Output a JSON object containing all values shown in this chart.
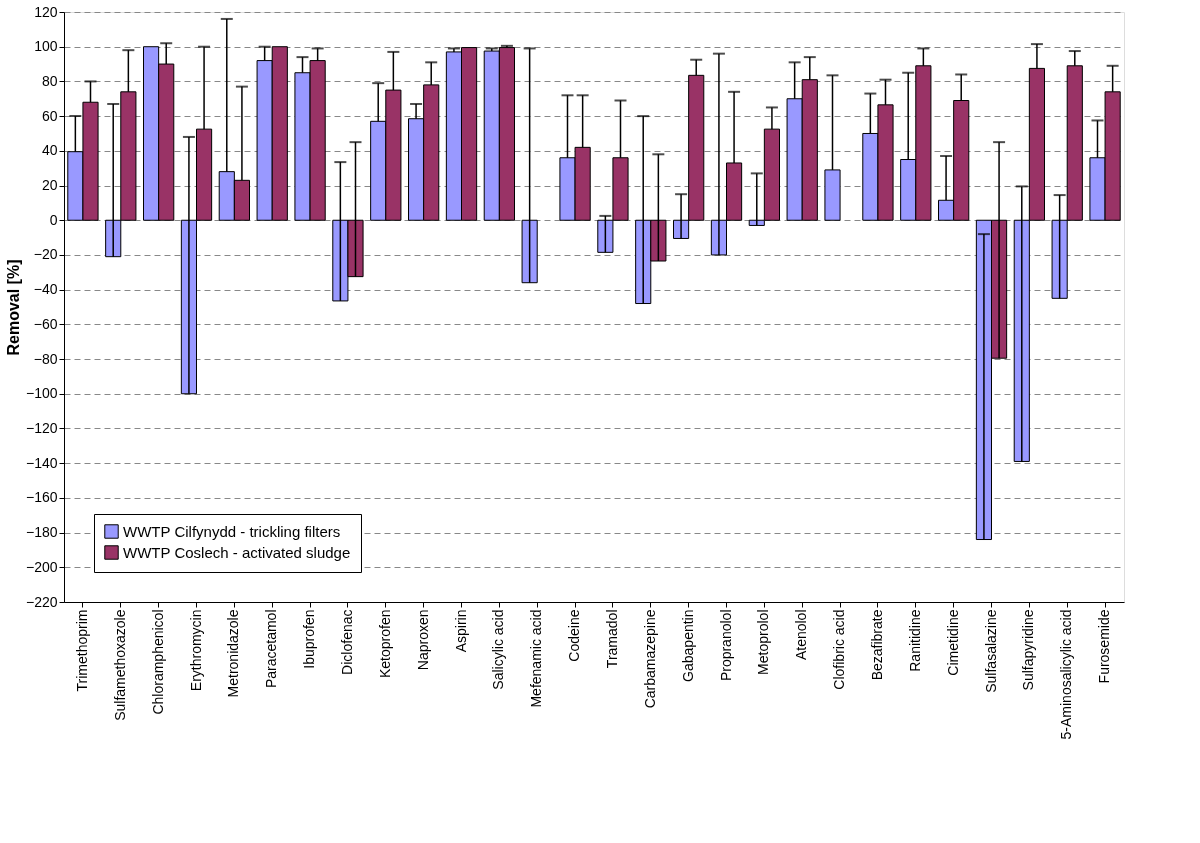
{
  "chart_data": {
    "type": "bar",
    "ylabel": "Removal [%]",
    "categories": [
      "Trimethoprim",
      "Sulfamethoxazole",
      "Chloramphenicol",
      "Erythromycin",
      "Metronidazole",
      "Paracetamol",
      "Ibuprofen",
      "Diclofenac",
      "Ketoprofen",
      "Naproxen",
      "Aspirin",
      "Salicylic acid",
      "Mefenamic acid",
      "Codeine",
      "Tramadol",
      "Carbamazepine",
      "Gabapentin",
      "Propranolol",
      "Metoprolol",
      "Atenolol",
      "Clofibric acid",
      "Bezafibrate",
      "Ranitidine",
      "Cimetidine",
      "Sulfasalazine",
      "Sulfapyridine",
      "5-Aminosalicylic acid",
      "Furosemide"
    ],
    "series": [
      {
        "name": "WWTP Cilfynydd - trickling filters",
        "color": "#9999ff",
        "values": [
          39.5,
          -21,
          100,
          -100,
          28,
          92,
          85,
          -46.5,
          57,
          58.5,
          97,
          97.5,
          -36,
          36,
          -18.5,
          -48,
          -10.5,
          -20,
          -3,
          70,
          29,
          50,
          35,
          11.5,
          -184,
          -139,
          -45,
          36
        ],
        "errors": [
          [
            39.5,
            60
          ],
          [
            -21,
            67
          ],
          null,
          [
            -100,
            48
          ],
          [
            28,
            116
          ],
          [
            92,
            100
          ],
          [
            85,
            94
          ],
          [
            -46.5,
            33.5
          ],
          [
            57,
            79
          ],
          [
            58.5,
            67
          ],
          [
            97,
            99
          ],
          [
            97.5,
            99
          ],
          [
            -36,
            99
          ],
          [
            36,
            72
          ],
          [
            -18.5,
            2.5
          ],
          [
            -48,
            60
          ],
          [
            -10.5,
            15
          ],
          [
            -20,
            96
          ],
          [
            -3,
            27
          ],
          [
            70,
            91
          ],
          [
            29,
            83.5
          ],
          [
            50,
            73
          ],
          [
            35,
            85
          ],
          [
            11.5,
            37
          ],
          [
            -184,
            -8
          ],
          [
            -139,
            19.5
          ],
          [
            -45,
            14.5
          ],
          [
            36,
            57.5
          ]
        ]
      },
      {
        "name": "WWTP Coslech - activated sludge",
        "color": "#993366",
        "values": [
          68,
          74,
          90,
          52.5,
          23,
          100,
          92,
          -32.5,
          75,
          78,
          99.5,
          99.5,
          null,
          42,
          36,
          -23.5,
          83.5,
          33,
          52.5,
          81,
          null,
          66.5,
          89,
          69,
          -79.5,
          87.5,
          89,
          74
        ],
        "errors": [
          [
            68,
            80
          ],
          [
            74,
            98
          ],
          [
            90,
            102
          ],
          [
            52.5,
            100
          ],
          [
            23,
            77
          ],
          null,
          [
            92,
            99
          ],
          [
            -32.5,
            45
          ],
          [
            75,
            97
          ],
          [
            78,
            91
          ],
          null,
          [
            99.5,
            100.5
          ],
          null,
          [
            42,
            72
          ],
          [
            36,
            69
          ],
          [
            -23.5,
            38
          ],
          [
            83.5,
            92.5
          ],
          [
            33,
            74
          ],
          [
            52.5,
            65
          ],
          [
            81,
            94
          ],
          null,
          [
            66.5,
            81
          ],
          [
            89,
            99
          ],
          [
            69,
            84
          ],
          [
            -79.5,
            45
          ],
          [
            87.5,
            101.5
          ],
          [
            89,
            97.5
          ],
          [
            74,
            89
          ]
        ]
      }
    ],
    "ylim": [
      -220,
      120
    ],
    "yticks": [
      120,
      100,
      80,
      60,
      40,
      20,
      0,
      -20,
      -40,
      -60,
      -80,
      -100,
      -120,
      -140,
      -160,
      -180,
      -200,
      -220
    ],
    "grid": "y",
    "legend": "bottom left"
  }
}
